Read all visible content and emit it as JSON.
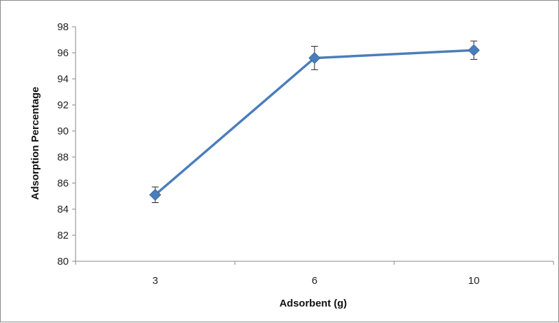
{
  "chart_data": {
    "type": "line",
    "title": "",
    "xlabel": "Adsorbent  (g)",
    "ylabel": "Adsorption Percentage",
    "categories": [
      "3",
      "6",
      "10"
    ],
    "series": [
      {
        "values": [
          85.1,
          95.6,
          96.2
        ],
        "error": [
          0.6,
          0.9,
          0.7
        ],
        "color": "#4a7ebb",
        "marker": "diamond"
      }
    ],
    "ylim": [
      80,
      98
    ],
    "yticks": [
      80,
      82,
      84,
      86,
      88,
      90,
      92,
      94,
      96,
      98
    ],
    "grid": false,
    "legend": "none"
  }
}
